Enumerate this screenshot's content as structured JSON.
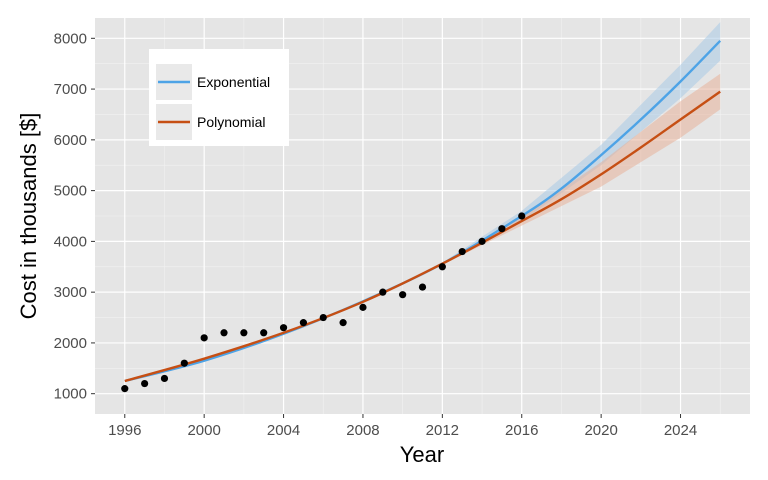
{
  "chart_data": {
    "type": "scatter",
    "xlabel": "Year",
    "ylabel": "Cost in thousands [$]",
    "xlim": [
      1994.5,
      2027.5
    ],
    "ylim": [
      600,
      8400
    ],
    "x_ticks": [
      1996,
      2000,
      2004,
      2008,
      2012,
      2016,
      2020,
      2024
    ],
    "y_ticks": [
      1000,
      2000,
      3000,
      4000,
      5000,
      6000,
      7000,
      8000
    ],
    "grid": true,
    "legend_position": "top-left",
    "points": [
      {
        "x": 1996,
        "y": 1100
      },
      {
        "x": 1997,
        "y": 1200
      },
      {
        "x": 1998,
        "y": 1300
      },
      {
        "x": 1999,
        "y": 1600
      },
      {
        "x": 2000,
        "y": 2100
      },
      {
        "x": 2001,
        "y": 2200
      },
      {
        "x": 2002,
        "y": 2200
      },
      {
        "x": 2003,
        "y": 2200
      },
      {
        "x": 2004,
        "y": 2300
      },
      {
        "x": 2005,
        "y": 2400
      },
      {
        "x": 2006,
        "y": 2500
      },
      {
        "x": 2007,
        "y": 2400
      },
      {
        "x": 2008,
        "y": 2700
      },
      {
        "x": 2009,
        "y": 3000
      },
      {
        "x": 2010,
        "y": 2950
      },
      {
        "x": 2011,
        "y": 3100
      },
      {
        "x": 2012,
        "y": 3500
      },
      {
        "x": 2013,
        "y": 3800
      },
      {
        "x": 2014,
        "y": 4000
      },
      {
        "x": 2015,
        "y": 4250
      },
      {
        "x": 2016,
        "y": 4500
      }
    ],
    "series": [
      {
        "name": "Exponential",
        "color": "#4da3e6",
        "band_color": "#a9cbe6",
        "x": [
          1996,
          2000,
          2004,
          2008,
          2012,
          2016,
          2018,
          2020,
          2022,
          2024,
          2026
        ],
        "y": [
          1250,
          1650,
          2180,
          2820,
          3560,
          4500,
          5040,
          5700,
          6400,
          7150,
          7950
        ],
        "band_x": [
          2012,
          2016,
          2020,
          2024,
          2026
        ],
        "band_lower": [
          3540,
          4400,
          5500,
          6820,
          7560
        ],
        "band_upper": [
          3580,
          4600,
          5900,
          7480,
          8320
        ]
      },
      {
        "name": "Polynomial",
        "color": "#c64f14",
        "band_color": "#e8b29a",
        "x": [
          1996,
          2000,
          2004,
          2008,
          2012,
          2016,
          2018,
          2020,
          2022,
          2024,
          2026
        ],
        "y": [
          1250,
          1690,
          2200,
          2810,
          3560,
          4400,
          4830,
          5320,
          5850,
          6400,
          6950
        ],
        "band_x": [
          2012,
          2016,
          2020,
          2024,
          2026
        ],
        "band_lower": [
          3540,
          4310,
          5080,
          6040,
          6600
        ],
        "band_upper": [
          3580,
          4490,
          5560,
          6760,
          7300
        ]
      }
    ]
  }
}
